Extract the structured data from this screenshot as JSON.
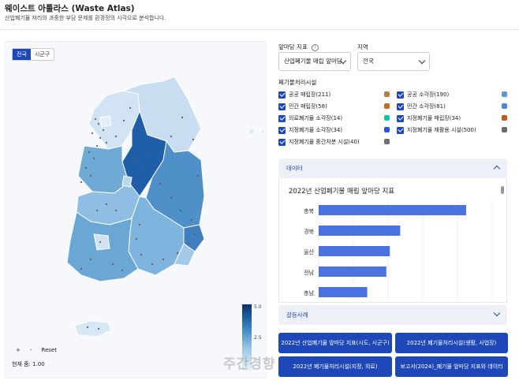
{
  "header": {
    "title": "웨이스트 아틀라스 (Waste Atlas)",
    "subtitle": "산업폐기물 처리의 과중한 부담 문제를 환경정의 시각으로 분석합니다."
  },
  "map": {
    "view_toggle": [
      "전국",
      "시군구"
    ],
    "active_view": "전국",
    "zoom_in": "+",
    "zoom_out": "-",
    "reset": "Reset",
    "zoom_readout": "현재 줌: 1.00",
    "colorbar": {
      "max_label": "5.0",
      "mid_label": "2.5",
      "colors": [
        "#08306b",
        "#2f7fc1",
        "#9cc9e6",
        "#eaf2fa"
      ]
    }
  },
  "controls": {
    "index_label": "앞마당 지표",
    "index_value": "산업폐기물 매립 앞마당",
    "region_label": "지역",
    "region_value": "전국"
  },
  "facilities": {
    "label": "폐기물처리시설",
    "items": [
      {
        "label": "공공 매립장(211)",
        "color": "#b0804a",
        "checked": true
      },
      {
        "label": "공공 소각장(190)",
        "color": "#5b9ad8",
        "checked": true
      },
      {
        "label": "민간 매립장(58)",
        "color": "#c46a2c",
        "checked": true
      },
      {
        "label": "민간 소각장(81)",
        "color": "#4f86d6",
        "checked": true
      },
      {
        "label": "의료폐기물 소각장(14)",
        "color": "#19c2a6",
        "checked": true
      },
      {
        "label": "지정폐기물 매립장(34)",
        "color": "#c2571b",
        "checked": true
      },
      {
        "label": "지정폐기물 소각장(34)",
        "color": "#2558dd",
        "checked": true
      },
      {
        "label": "지정폐기물 재활용 시설(500)",
        "color": "#6a6a6a",
        "checked": true
      },
      {
        "label": "지정폐기물 중간처분 시설(40)",
        "color": "#707070",
        "checked": true
      }
    ]
  },
  "data_panel": {
    "label": "데이터",
    "chart_title": "2022년 산업폐기물 매립 앞마당 지표"
  },
  "chart_data": {
    "type": "bar",
    "orientation": "horizontal",
    "title": "2022년 산업폐기물 매립 앞마당 지표",
    "categories": [
      "충북",
      "경북",
      "울산",
      "전남",
      "충남"
    ],
    "values": [
      4.25,
      2.35,
      2.05,
      1.95,
      1.4
    ],
    "xlim": [
      0,
      5
    ],
    "bar_color": "#4a72e0",
    "grid": true
  },
  "conflict_panel": {
    "label": "갈등사례"
  },
  "buttons": [
    "2022년 산업폐기물 앞마당 지표(시도, 시군구)",
    "2022년 폐기물처리시설(생활, 사업장)",
    "2022년 폐기물처리시설(지정, 의료)",
    "보고서(2024)_폐기물 앞마당 지표와 데이터"
  ],
  "watermark": "주간경향"
}
